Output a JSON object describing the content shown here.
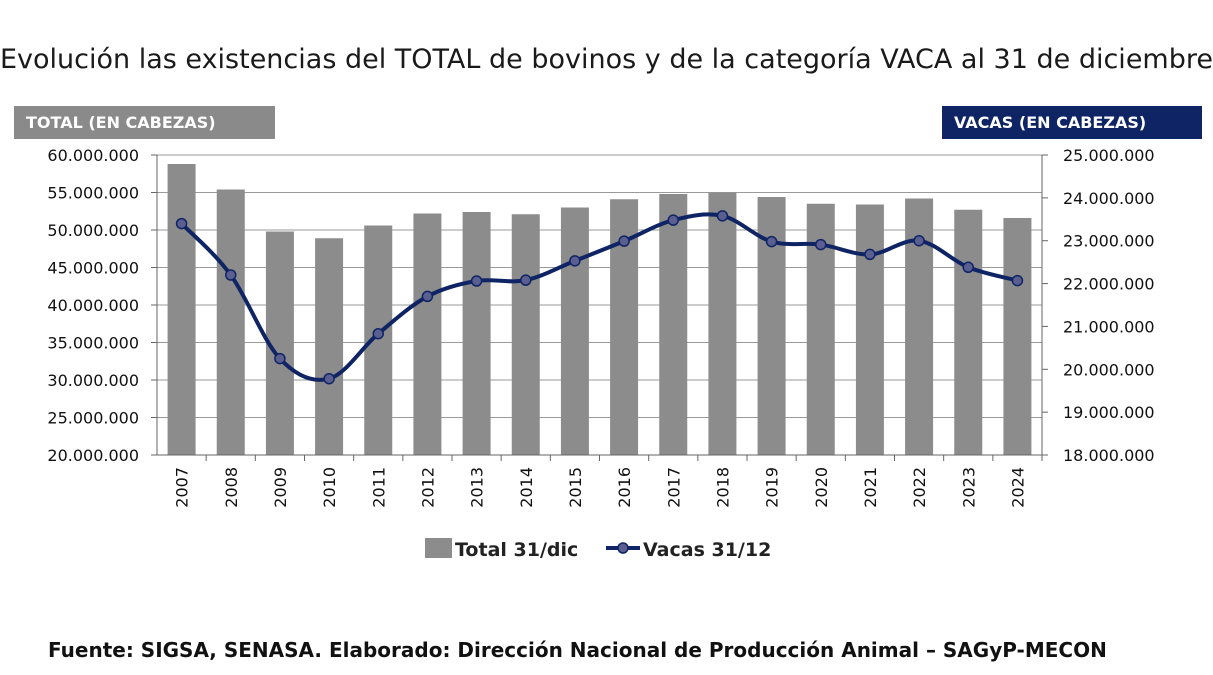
{
  "title": "Evolución las existencias del TOTAL de bovinos y de la categoría VACA al 31 de diciembre",
  "left_axis_tag": "TOTAL (EN CABEZAS)",
  "right_axis_tag": "VACAS (EN CABEZAS)",
  "source": "Fuente: SIGSA, SENASA. Elaborado: Dirección Nacional de Producción Animal – SAGyP-MECON",
  "colors": {
    "bars": "#8c8c8c",
    "line": "#0f2465",
    "marker": "#5a5f8f",
    "left_tag": "#8a8a8a",
    "right_tag": "#0f2465"
  },
  "chart_data": {
    "type": "bar+line",
    "categories": [
      "2007",
      "2008",
      "2009",
      "2010",
      "2011",
      "2012",
      "2013",
      "2014",
      "2015",
      "2016",
      "2017",
      "2018",
      "2019",
      "2020",
      "2021",
      "2022",
      "2023",
      "2024"
    ],
    "series": [
      {
        "name": "Total 31/dic",
        "type": "bar",
        "axis": "left",
        "values": [
          58800000,
          55400000,
          49800000,
          48900000,
          50600000,
          52200000,
          52400000,
          52100000,
          53000000,
          54100000,
          54800000,
          55000000,
          54400000,
          53500000,
          53400000,
          54200000,
          52700000,
          51600000
        ]
      },
      {
        "name": "Vacas 31/12",
        "type": "line",
        "axis": "right",
        "values": [
          23400000,
          22200000,
          20250000,
          19780000,
          20830000,
          21700000,
          22060000,
          22080000,
          22530000,
          22990000,
          23480000,
          23580000,
          22980000,
          22910000,
          22680000,
          23000000,
          22380000,
          22070000
        ]
      }
    ],
    "left_axis": {
      "min": 20000000,
      "max": 60000000,
      "step": 5000000,
      "ticks": [
        "20.000.000",
        "25.000.000",
        "30.000.000",
        "35.000.000",
        "40.000.000",
        "45.000.000",
        "50.000.000",
        "55.000.000",
        "60.000.000"
      ]
    },
    "right_axis": {
      "min": 18000000,
      "max": 25000000,
      "step": 1000000,
      "ticks": [
        "18.000.000",
        "19.000.000",
        "20.000.000",
        "21.000.000",
        "22.000.000",
        "23.000.000",
        "24.000.000",
        "25.000.000"
      ]
    },
    "grid": true,
    "legend_position": "bottom"
  }
}
